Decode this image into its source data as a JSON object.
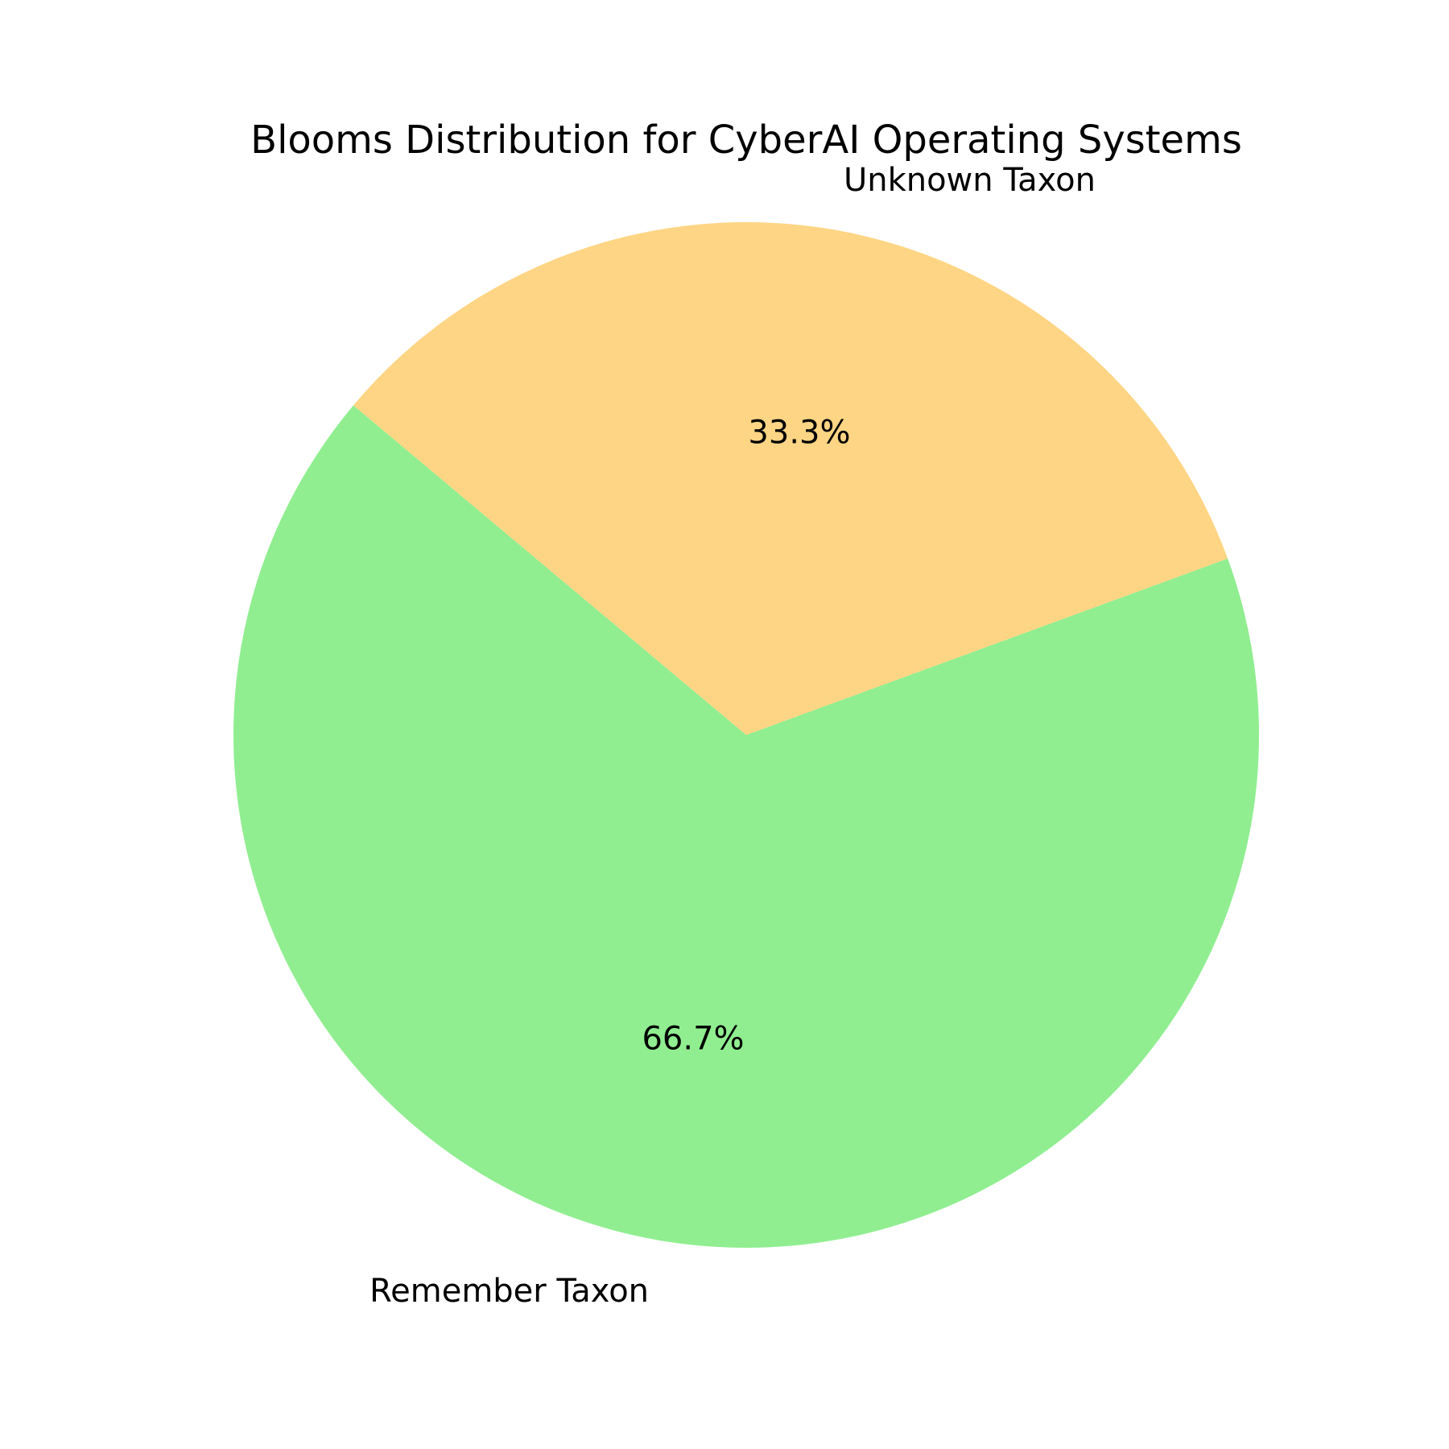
{
  "chart_data": {
    "type": "pie",
    "title": "Blooms Distribution for CyberAI Operating Systems",
    "slices": [
      {
        "label": "Remember Taxon",
        "value": 66.7,
        "percent_label": "66.7%",
        "color": "#90ee90"
      },
      {
        "label": "Unknown Taxon",
        "value": 33.3,
        "percent_label": "33.3%",
        "color": "#fed584"
      }
    ]
  }
}
